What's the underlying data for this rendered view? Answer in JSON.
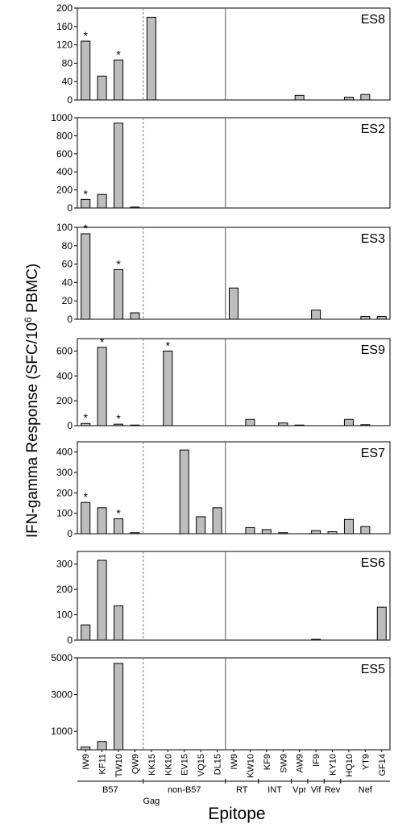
{
  "chart_data": {
    "type": "bar",
    "ylabel": "IFN-gamma Response  (SFC/10",
    "ylabel_sup": "6",
    "ylabel_tail": " PBMC)",
    "xlabel": "Epitope",
    "categories": [
      "IW9",
      "KF11",
      "TW10",
      "QW9",
      "KK15",
      "KK10",
      "EV15",
      "VQ15",
      "DL15",
      "IW9",
      "KW10",
      "KF9",
      "SW9",
      "AW9",
      "IF9",
      "KY10",
      "HQ10",
      "YT9",
      "GF14"
    ],
    "star_symbol": "*",
    "group_labels": [
      {
        "text": "B57",
        "row": 1
      },
      {
        "text": "non-B57",
        "row": 1
      },
      {
        "text": "Gag",
        "row": 2
      },
      {
        "text": "RT",
        "row": 1
      },
      {
        "text": "INT",
        "row": 1
      },
      {
        "text": "Vpr",
        "row": 1
      },
      {
        "text": "Vif",
        "row": 1
      },
      {
        "text": "Rev",
        "row": 1
      },
      {
        "text": "Nef",
        "row": 1
      }
    ],
    "panels": [
      {
        "name": "ES8",
        "ylim": [
          0,
          200
        ],
        "yticks": [
          0,
          40,
          80,
          120,
          160,
          200
        ],
        "values": [
          128,
          52,
          87,
          0,
          180,
          0,
          0,
          0,
          0,
          0,
          0,
          0,
          0,
          10,
          0,
          0,
          6,
          12,
          0
        ],
        "stars": [
          0,
          2
        ]
      },
      {
        "name": "ES2",
        "ylim": [
          0,
          1000
        ],
        "yticks": [
          0,
          200,
          400,
          600,
          800,
          1000
        ],
        "values": [
          95,
          150,
          940,
          10,
          0,
          0,
          0,
          0,
          0,
          0,
          0,
          0,
          0,
          0,
          0,
          0,
          0,
          0,
          0
        ],
        "stars": [
          0
        ]
      },
      {
        "name": "ES3",
        "ylim": [
          0,
          100
        ],
        "yticks": [
          0,
          20,
          40,
          60,
          80,
          100
        ],
        "values": [
          93,
          0,
          54,
          7,
          0,
          0,
          0,
          0,
          0,
          34,
          0,
          0,
          0,
          0,
          10,
          0,
          0,
          3,
          3
        ],
        "stars": [
          0,
          2
        ]
      },
      {
        "name": "ES9",
        "ylim": [
          0,
          700
        ],
        "yticks": [
          0,
          200,
          400,
          600
        ],
        "values": [
          18,
          630,
          12,
          5,
          0,
          600,
          0,
          0,
          0,
          0,
          50,
          0,
          22,
          5,
          0,
          0,
          50,
          8,
          0
        ],
        "stars": [
          0,
          1,
          2,
          5
        ]
      },
      {
        "name": "ES7",
        "ylim": [
          0,
          450
        ],
        "yticks": [
          0,
          100,
          200,
          300,
          400
        ],
        "values": [
          153,
          127,
          73,
          5,
          0,
          0,
          410,
          83,
          127,
          0,
          30,
          20,
          5,
          0,
          15,
          10,
          70,
          35,
          0
        ],
        "stars": [
          0,
          2
        ]
      },
      {
        "name": "ES6",
        "ylim": [
          0,
          350
        ],
        "yticks": [
          0,
          100,
          200,
          300
        ],
        "values": [
          60,
          315,
          135,
          0,
          0,
          0,
          0,
          0,
          0,
          0,
          0,
          0,
          0,
          0,
          3,
          0,
          0,
          0,
          130
        ],
        "stars": []
      },
      {
        "name": "ES5",
        "ylim": [
          0,
          5000
        ],
        "yticks": [
          1000,
          3000,
          5000
        ],
        "values": [
          150,
          450,
          4700,
          0,
          0,
          0,
          0,
          0,
          0,
          0,
          0,
          0,
          0,
          0,
          0,
          0,
          0,
          0,
          0
        ],
        "stars": []
      }
    ],
    "bar_color": "#bdbdbd"
  }
}
